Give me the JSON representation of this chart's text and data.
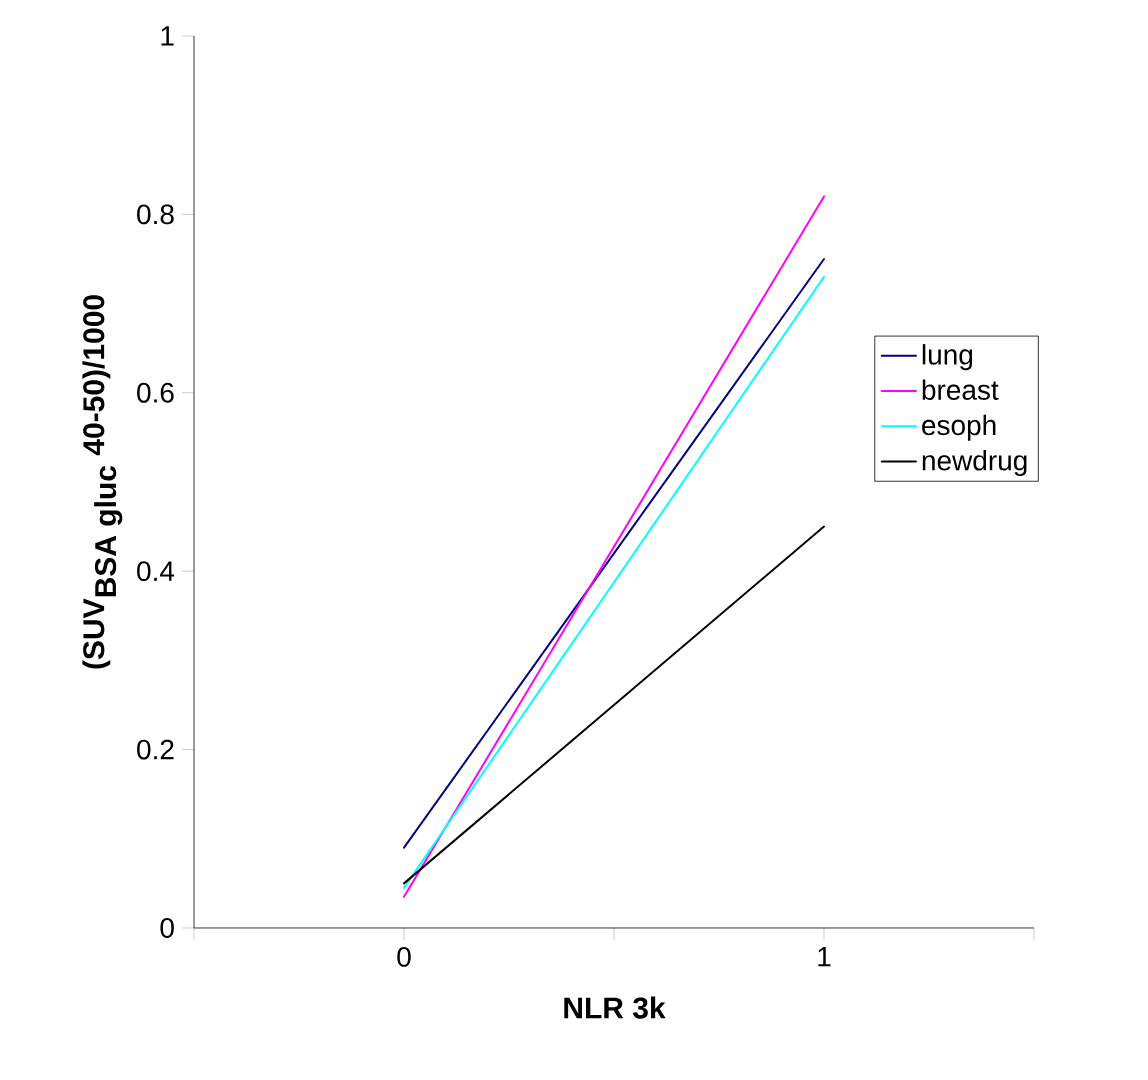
{
  "chart_data": {
    "type": "line",
    "xlabel": "NLR 3k",
    "ylabel": "\\textbf{(SUV}_{\\textbf{BSA gluc}}\\textbf{ 40-50)/1000}",
    "x": [
      0,
      1
    ],
    "xlim": [
      -0.5,
      1.5
    ],
    "xticks": [
      {
        "value": -0.5,
        "label": null
      },
      0,
      {
        "value": 0.5,
        "label": null
      },
      1,
      {
        "value": 1.5,
        "label": null
      }
    ],
    "series": [
      {
        "name": "lung",
        "color": "#000080",
        "values": [
          0.09,
          0.75
        ]
      },
      {
        "name": "breast",
        "color": "#ff00ff",
        "values": [
          0.035,
          0.82
        ]
      },
      {
        "name": "esoph",
        "color": "#00ffff",
        "values": [
          0.045,
          0.73
        ]
      },
      {
        "name": "newdrug",
        "color": "#000000",
        "values": [
          0.05,
          0.45
        ]
      }
    ],
    "ylim": [
      0,
      1
    ],
    "yticks": [
      0,
      0.2,
      0.4,
      0.6,
      0.8,
      1
    ],
    "legend": "right",
    "grid": false,
    "marker": "none",
    "line_style": "solid"
  }
}
